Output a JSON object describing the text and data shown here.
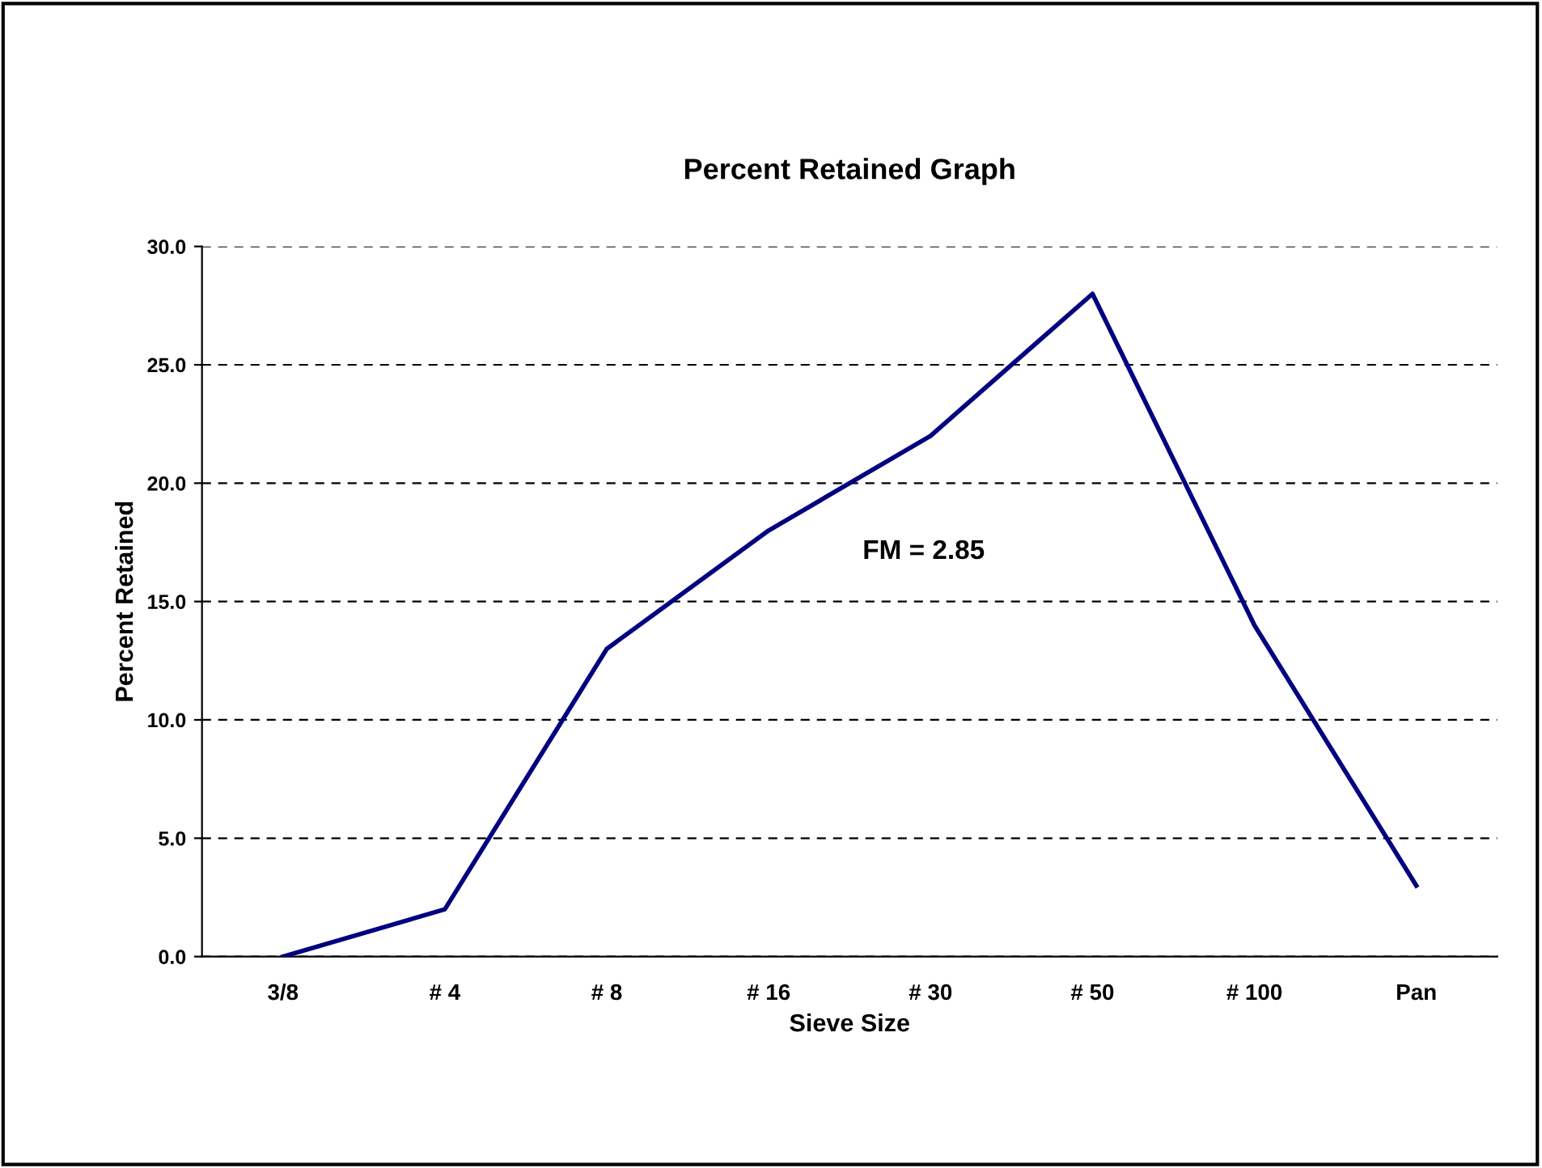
{
  "chart_data": {
    "type": "line",
    "title": "Percent Retained Graph",
    "xlabel": "Sieve Size",
    "ylabel": "Percent Retained",
    "categories": [
      "3/8",
      "# 4",
      "# 8",
      "# 16",
      "# 30",
      "# 50",
      "# 100",
      "Pan"
    ],
    "series": [
      {
        "color": "#000080",
        "values": [
          0,
          2,
          13,
          18,
          22,
          28,
          14,
          3
        ]
      }
    ],
    "ylim": [
      0,
      30
    ],
    "yticks": [
      {
        "value": 0,
        "label": "0.0"
      },
      {
        "value": 5,
        "label": "5.0"
      },
      {
        "value": 10,
        "label": "10.0"
      },
      {
        "value": 15,
        "label": "15.0"
      },
      {
        "value": 20,
        "label": "20.0"
      },
      {
        "value": 25,
        "label": "25.0"
      },
      {
        "value": 30,
        "label": "30.0"
      }
    ],
    "grid": "y",
    "marker": "none",
    "line_style": "solid",
    "annotations": [
      "FM = 2.85"
    ]
  }
}
